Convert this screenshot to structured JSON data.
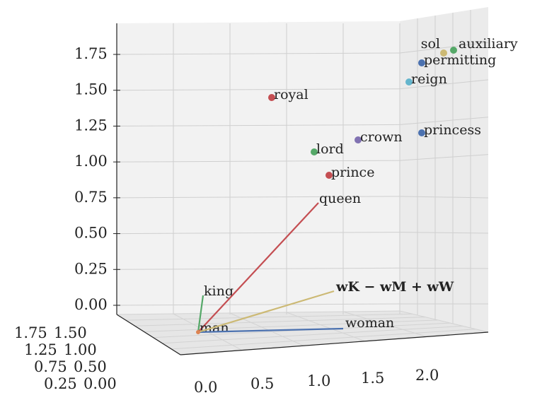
{
  "chart_data": {
    "type": "scatter",
    "projection": "3d",
    "zlim": [
      0,
      1.75
    ],
    "xlim": [
      0,
      2.2
    ],
    "ylim": [
      0,
      1.75
    ],
    "x_ticks": [
      "0.0",
      "0.5",
      "1.0",
      "1.5",
      "2.0"
    ],
    "y_ticks": [
      "0.00",
      "0.25",
      "0.50",
      "0.75",
      "1.00",
      "1.25",
      "1.50",
      "1.75"
    ],
    "z_ticks": [
      "0.00",
      "0.25",
      "0.50",
      "0.75",
      "1.00",
      "1.25",
      "1.50",
      "1.75"
    ],
    "grid": true,
    "vectors": [
      {
        "label": "king",
        "color": "#55a868",
        "z": 0.05
      },
      {
        "label": "queen",
        "color": "#c44e52",
        "z": 0.75
      },
      {
        "label": "man",
        "color": "#dd8452",
        "z": 0.0
      },
      {
        "label": "woman",
        "color": "#4c72b0",
        "z": 0.0
      },
      {
        "label": "w_K − w_M + w_W",
        "color": "#ccb974",
        "z": 0.1
      }
    ],
    "points": [
      {
        "label": "royal",
        "color": "#c44e52",
        "z": 1.44
      },
      {
        "label": "lord",
        "color": "#55a868",
        "z": 1.05
      },
      {
        "label": "crown",
        "color": "#8172b2",
        "z": 1.1
      },
      {
        "label": "prince",
        "color": "#c44e52",
        "z": 0.9
      },
      {
        "label": "princess",
        "color": "#4c72b0",
        "z": 1.2
      },
      {
        "label": "reign",
        "color": "#64b5cd",
        "z": 1.55
      },
      {
        "label": "permitting",
        "color": "#4c72b0",
        "z": 1.68
      },
      {
        "label": "sol",
        "color": "#ccb974",
        "z": 1.74
      },
      {
        "label": "auxiliary",
        "color": "#55a868",
        "z": 1.76
      }
    ]
  }
}
